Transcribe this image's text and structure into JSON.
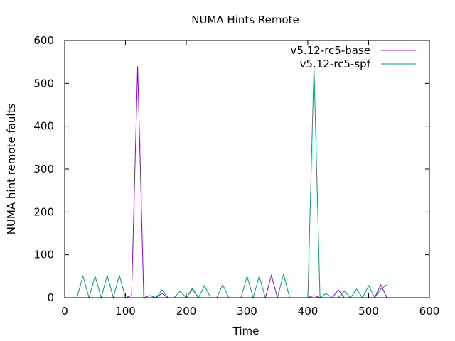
{
  "chart_data": {
    "type": "line",
    "title": "NUMA Hints Remote",
    "xlabel": "Time",
    "ylabel": "NUMA hint remote faults",
    "xlim": [
      0,
      600
    ],
    "ylim": [
      0,
      600
    ],
    "xticks": [
      0,
      100,
      200,
      300,
      400,
      500,
      600
    ],
    "yticks": [
      0,
      100,
      200,
      300,
      400,
      500,
      600
    ],
    "grid": false,
    "legend_position": "top-right",
    "series": [
      {
        "name": "v5.12-rc5-base",
        "color": "#9400d3",
        "x": [
          20,
          30,
          40,
          50,
          60,
          70,
          80,
          90,
          100,
          110,
          120,
          130,
          140,
          150,
          160,
          170,
          180,
          190,
          200,
          210,
          220,
          230,
          240,
          250,
          260,
          270,
          280,
          290,
          300,
          310,
          320,
          330,
          340,
          350,
          360,
          370,
          380,
          390,
          400,
          410,
          420,
          430,
          440,
          450,
          460,
          470,
          480,
          490,
          500,
          510,
          520,
          530
        ],
        "y": [
          0,
          0,
          0,
          0,
          0,
          0,
          0,
          0,
          0,
          5,
          540,
          0,
          5,
          0,
          10,
          0,
          0,
          0,
          0,
          20,
          0,
          0,
          0,
          0,
          0,
          0,
          0,
          0,
          0,
          0,
          0,
          0,
          52,
          0,
          0,
          0,
          0,
          0,
          0,
          5,
          0,
          0,
          0,
          18,
          0,
          0,
          0,
          0,
          0,
          0,
          30,
          0
        ]
      },
      {
        "name": "v5.12-rc5-spf",
        "color": "#009e73",
        "x": [
          20,
          30,
          40,
          50,
          60,
          70,
          80,
          90,
          100,
          110,
          120,
          130,
          140,
          150,
          160,
          170,
          180,
          190,
          200,
          210,
          220,
          230,
          240,
          250,
          260,
          270,
          280,
          290,
          300,
          310,
          320,
          330,
          340,
          350,
          360,
          370,
          380,
          390,
          400,
          410,
          420,
          430,
          440,
          450,
          460,
          470,
          480,
          490,
          500,
          510,
          520,
          530
        ],
        "y": [
          0,
          50,
          0,
          50,
          0,
          52,
          0,
          52,
          0,
          0,
          0,
          0,
          5,
          0,
          18,
          0,
          0,
          15,
          0,
          22,
          0,
          28,
          0,
          0,
          30,
          0,
          0,
          0,
          50,
          0,
          50,
          0,
          0,
          0,
          55,
          0,
          0,
          0,
          0,
          540,
          0,
          10,
          0,
          0,
          15,
          0,
          20,
          0,
          28,
          0,
          20,
          30
        ]
      }
    ]
  }
}
